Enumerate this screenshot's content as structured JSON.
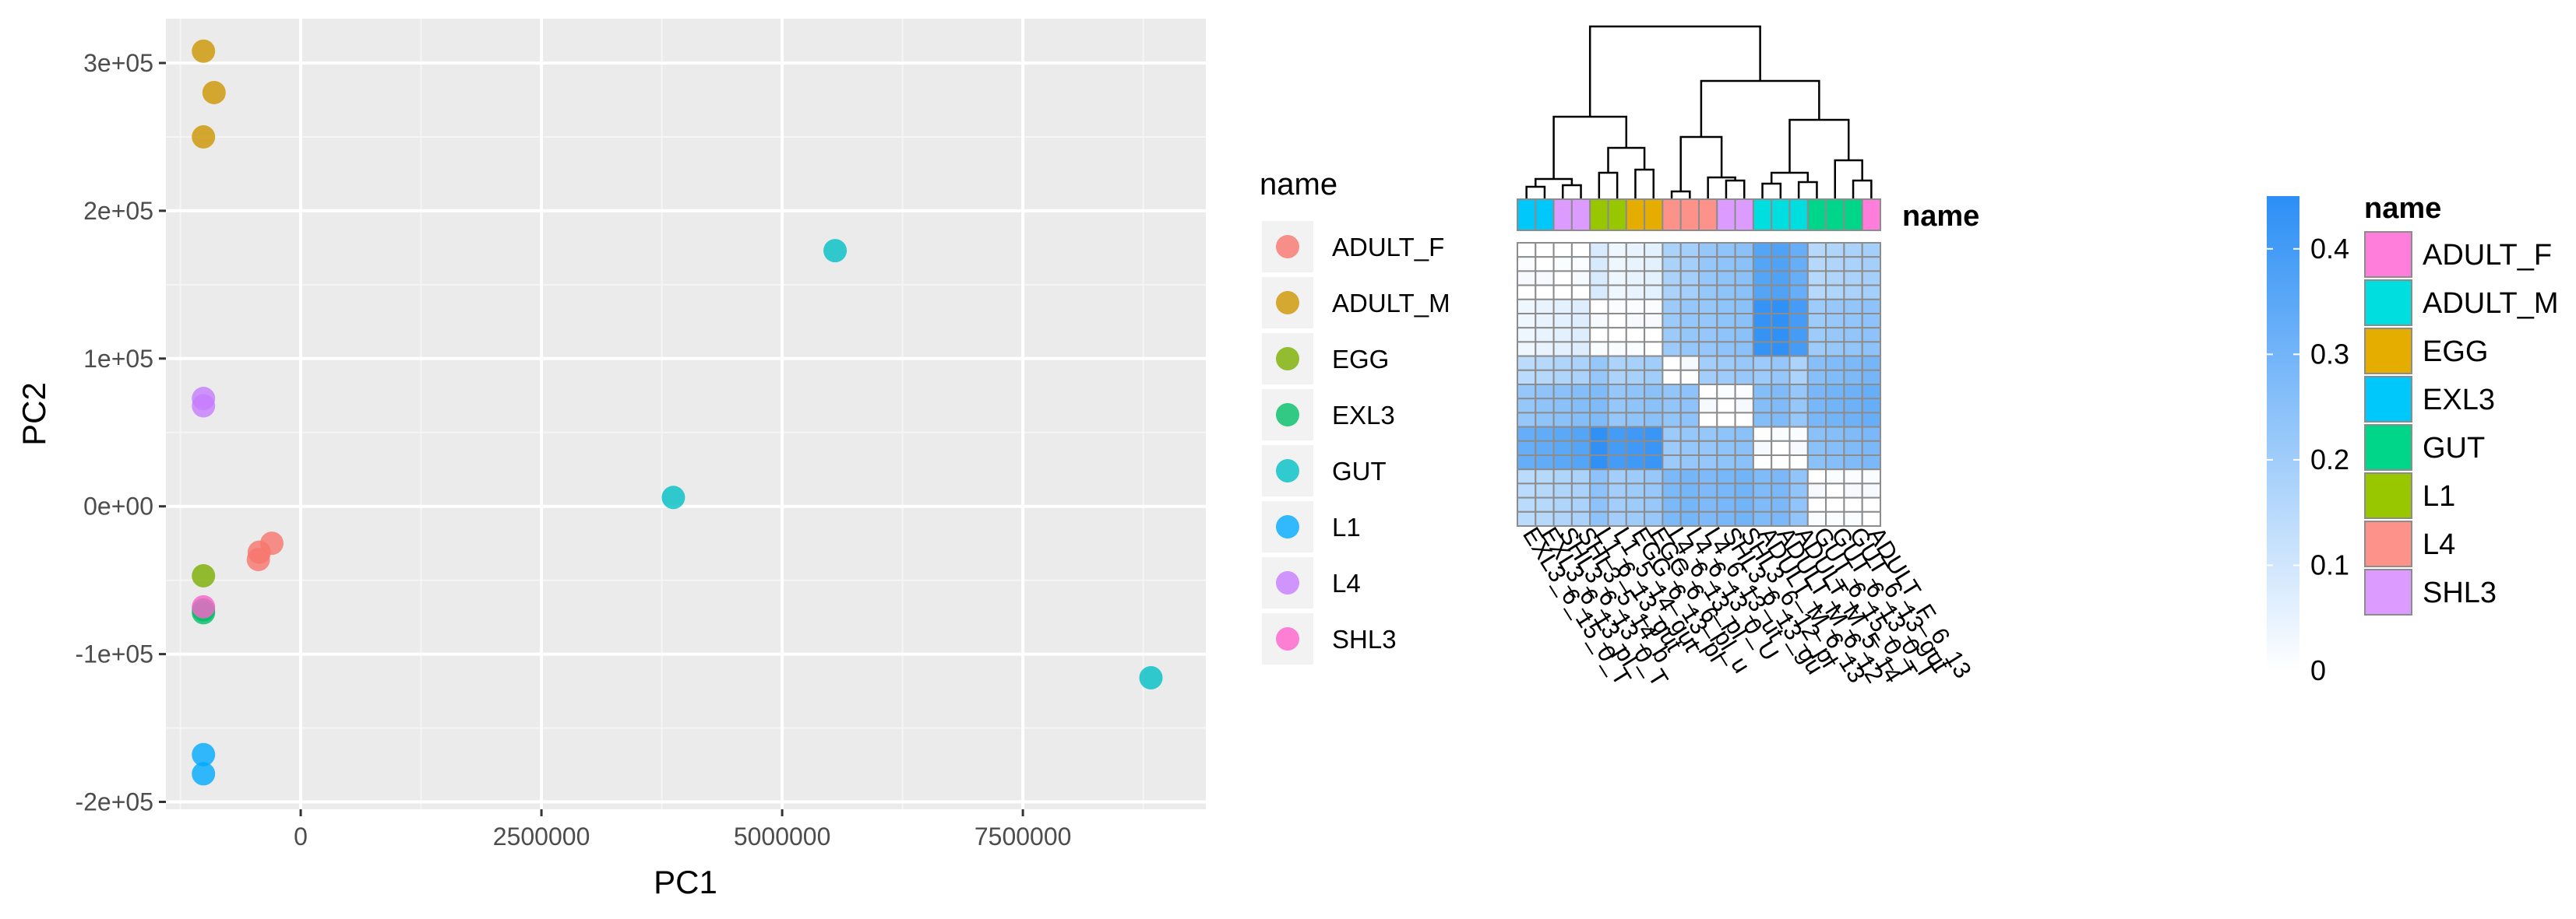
{
  "chart_data": [
    {
      "type": "scatter",
      "xlabel": "PC1",
      "ylabel": "PC2",
      "xlim": [
        -1400000,
        9400000
      ],
      "ylim": [
        -205000,
        330000
      ],
      "x_ticks": [
        0,
        2500000,
        5000000,
        7500000
      ],
      "x_tick_labels": [
        "0",
        "2500000",
        "5000000",
        "7500000"
      ],
      "y_ticks": [
        -200000,
        -100000,
        0,
        100000,
        200000,
        300000
      ],
      "y_tick_labels": [
        "-2e+05",
        "-1e+05",
        "0e+00",
        "1e+05",
        "2e+05",
        "3e+05"
      ],
      "grid": true,
      "legend": {
        "title": "name",
        "placement": "right",
        "entries": [
          {
            "name": "ADULT_F",
            "color": "#F8766D"
          },
          {
            "name": "ADULT_M",
            "color": "#CD9600"
          },
          {
            "name": "EGG",
            "color": "#7CAE00"
          },
          {
            "name": "EXL3",
            "color": "#00BE67"
          },
          {
            "name": "GUT",
            "color": "#00BFC4"
          },
          {
            "name": "L1",
            "color": "#00A9FF"
          },
          {
            "name": "L4",
            "color": "#C77CFF"
          },
          {
            "name": "SHL3",
            "color": "#FF61CC"
          }
        ]
      },
      "series": [
        {
          "name": "ADULT_F",
          "x": [
            -440000,
            -430000,
            -300000
          ],
          "y": [
            -36000,
            -31000,
            -25000
          ]
        },
        {
          "name": "ADULT_M",
          "x": [
            -1010000,
            -900000,
            -1010000
          ],
          "y": [
            308000,
            280000,
            250000
          ]
        },
        {
          "name": "EGG",
          "x": [
            -1010000
          ],
          "y": [
            -47000
          ]
        },
        {
          "name": "EXL3",
          "x": [
            -1010000,
            -1010000
          ],
          "y": [
            -70000,
            -72000
          ]
        },
        {
          "name": "GUT",
          "x": [
            5550000,
            3870000,
            8830000
          ],
          "y": [
            173000,
            6000,
            -116000
          ]
        },
        {
          "name": "L1",
          "x": [
            -1010000,
            -1010000
          ],
          "y": [
            -168000,
            -181000
          ]
        },
        {
          "name": "L4",
          "x": [
            -1010000,
            -1010000
          ],
          "y": [
            73000,
            68000
          ]
        },
        {
          "name": "SHL3",
          "x": [
            -1010000
          ],
          "y": [
            -68000
          ]
        }
      ]
    },
    {
      "type": "heatmap",
      "annotation_label": "name",
      "n": 20,
      "column_groups": [
        "EXL3",
        "EXL3",
        "SHL3",
        "SHL3",
        "L1",
        "L1",
        "EGG",
        "EGG",
        "L4",
        "L4",
        "L4",
        "SHL3",
        "SHL3",
        "ADULT_M",
        "ADULT_M",
        "ADULT_M",
        "GUT",
        "GUT",
        "GUT",
        "ADULT_F"
      ],
      "column_labels": [
        "EXL3_6_15_0_T",
        "EXL3_6_13_pl",
        "SHL3_6_13_0_T",
        "SHL3_5_14_b",
        "L1_6_13_gut",
        "L1_5_14_gut",
        "EGG_6_13_pl",
        "EGG_6_6_pl_u",
        "L4_6_13_pl",
        "L4_6_13_0_U",
        "L4_6_13_ut",
        "SHL3_6_13_gu",
        "SHL3_6_12_pl",
        "ADULT_M_6_13",
        "ADULT_M_6_12",
        "ADULT_M_5_14",
        "GUT_6_15_0_T",
        "GUT_6_13_0_T",
        "GUT_6_13_gut",
        "ADULT_F_6_13"
      ],
      "block_values": [
        [
          0.0,
          0.06,
          0.17,
          0.25,
          0.35,
          0.17
        ],
        [
          0.06,
          0.0,
          0.2,
          0.25,
          0.42,
          0.22
        ],
        [
          0.17,
          0.2,
          0.0,
          0.22,
          0.2,
          0.27
        ],
        [
          0.25,
          0.25,
          0.22,
          0.0,
          0.25,
          0.3
        ],
        [
          0.35,
          0.42,
          0.2,
          0.25,
          0.0,
          0.26
        ],
        [
          0.17,
          0.22,
          0.27,
          0.3,
          0.26,
          0.0
        ]
      ],
      "block_sizes": [
        4,
        4,
        2,
        3,
        3,
        4
      ],
      "colorbar": {
        "ticks": [
          0,
          0.1,
          0.2,
          0.3,
          0.4
        ],
        "tick_labels": [
          "0",
          "0.1",
          "0.2",
          "0.3",
          "0.4"
        ],
        "min": 0,
        "max": 0.45,
        "low_color": "#FFFFFF",
        "high_color": "#2C8FF5"
      },
      "legend": {
        "title": "name",
        "entries": [
          {
            "name": "ADULT_F",
            "color": "#FF7DDB"
          },
          {
            "name": "ADULT_M",
            "color": "#00DEE0"
          },
          {
            "name": "EGG",
            "color": "#E4AD00"
          },
          {
            "name": "EXL3",
            "color": "#00C8FA"
          },
          {
            "name": "GUT",
            "color": "#00D68A"
          },
          {
            "name": "L1",
            "color": "#98C700"
          },
          {
            "name": "L4",
            "color": "#FC928A"
          },
          {
            "name": "SHL3",
            "color": "#DB9BFF"
          }
        ]
      }
    }
  ]
}
